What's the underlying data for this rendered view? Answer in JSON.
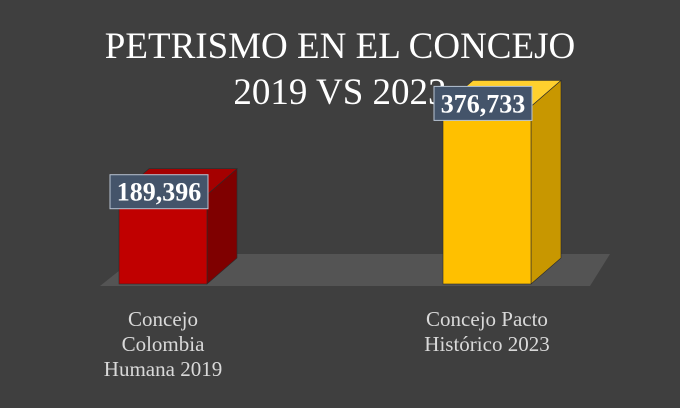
{
  "chart_data": {
    "type": "bar",
    "title": [
      "PETRISMO EN EL CONCEJO",
      "2019 VS 2023"
    ],
    "categories": [
      [
        "Concejo",
        "Colombia",
        "Humana 2019"
      ],
      [
        "Concejo Pacto",
        "Histórico 2023"
      ]
    ],
    "values": [
      189396,
      376733
    ],
    "data_labels": [
      "189,396",
      "376,733"
    ],
    "colors": {
      "front": [
        "#c00000",
        "#ffc000"
      ],
      "side": [
        "#7f0000",
        "#c89700"
      ],
      "top": [
        "#a50000",
        "#ffd02e"
      ],
      "floor": "#545454",
      "label_bg": "#44546a",
      "label_border": "#b7c3d3"
    },
    "ylim": [
      0,
      420000
    ],
    "grid": false,
    "legend": "none"
  }
}
